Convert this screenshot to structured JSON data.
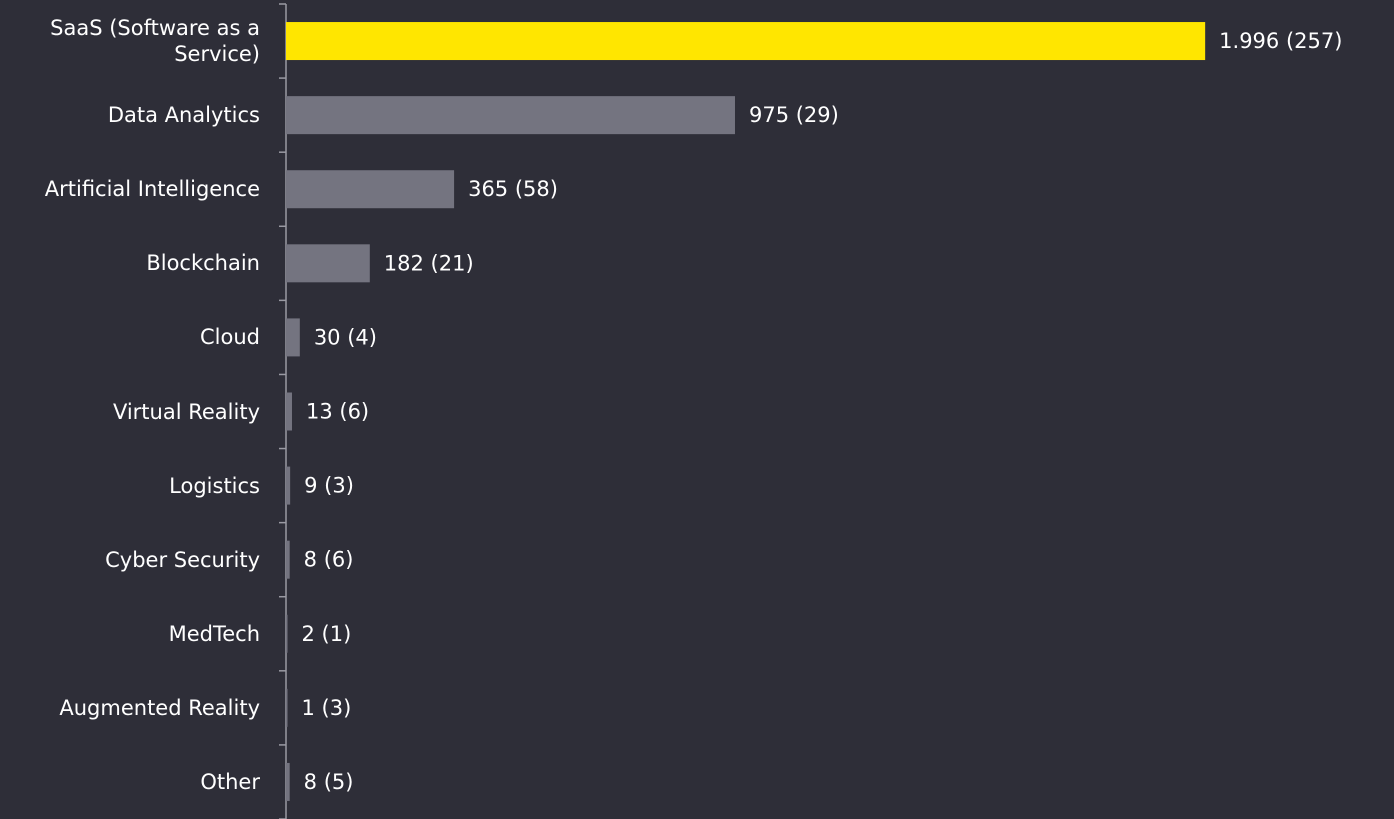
{
  "chart_data": {
    "type": "bar",
    "orientation": "horizontal",
    "categories": [
      "SaaS (Software as a Service)",
      "Data Analytics",
      "Artificial Intelligence",
      "Blockchain",
      "Cloud",
      "Virtual Reality",
      "Logistics",
      "Cyber Security",
      "MedTech",
      "Augmented Reality",
      "Other"
    ],
    "values": [
      1996,
      975,
      365,
      182,
      30,
      13,
      9,
      8,
      2,
      1,
      8
    ],
    "value_labels": [
      "1.996 (257)",
      "975 (29)",
      "365 (58)",
      "182 (21)",
      "30 (4)",
      "13 (6)",
      "9 (3)",
      "8 (6)",
      "2 (1)",
      "1 (3)",
      "8 (5)"
    ],
    "colors": [
      "#ffe600",
      "#747480",
      "#747480",
      "#747480",
      "#747480",
      "#747480",
      "#747480",
      "#747480",
      "#747480",
      "#747480",
      "#747480"
    ],
    "xlim": [
      0,
      2000
    ]
  }
}
